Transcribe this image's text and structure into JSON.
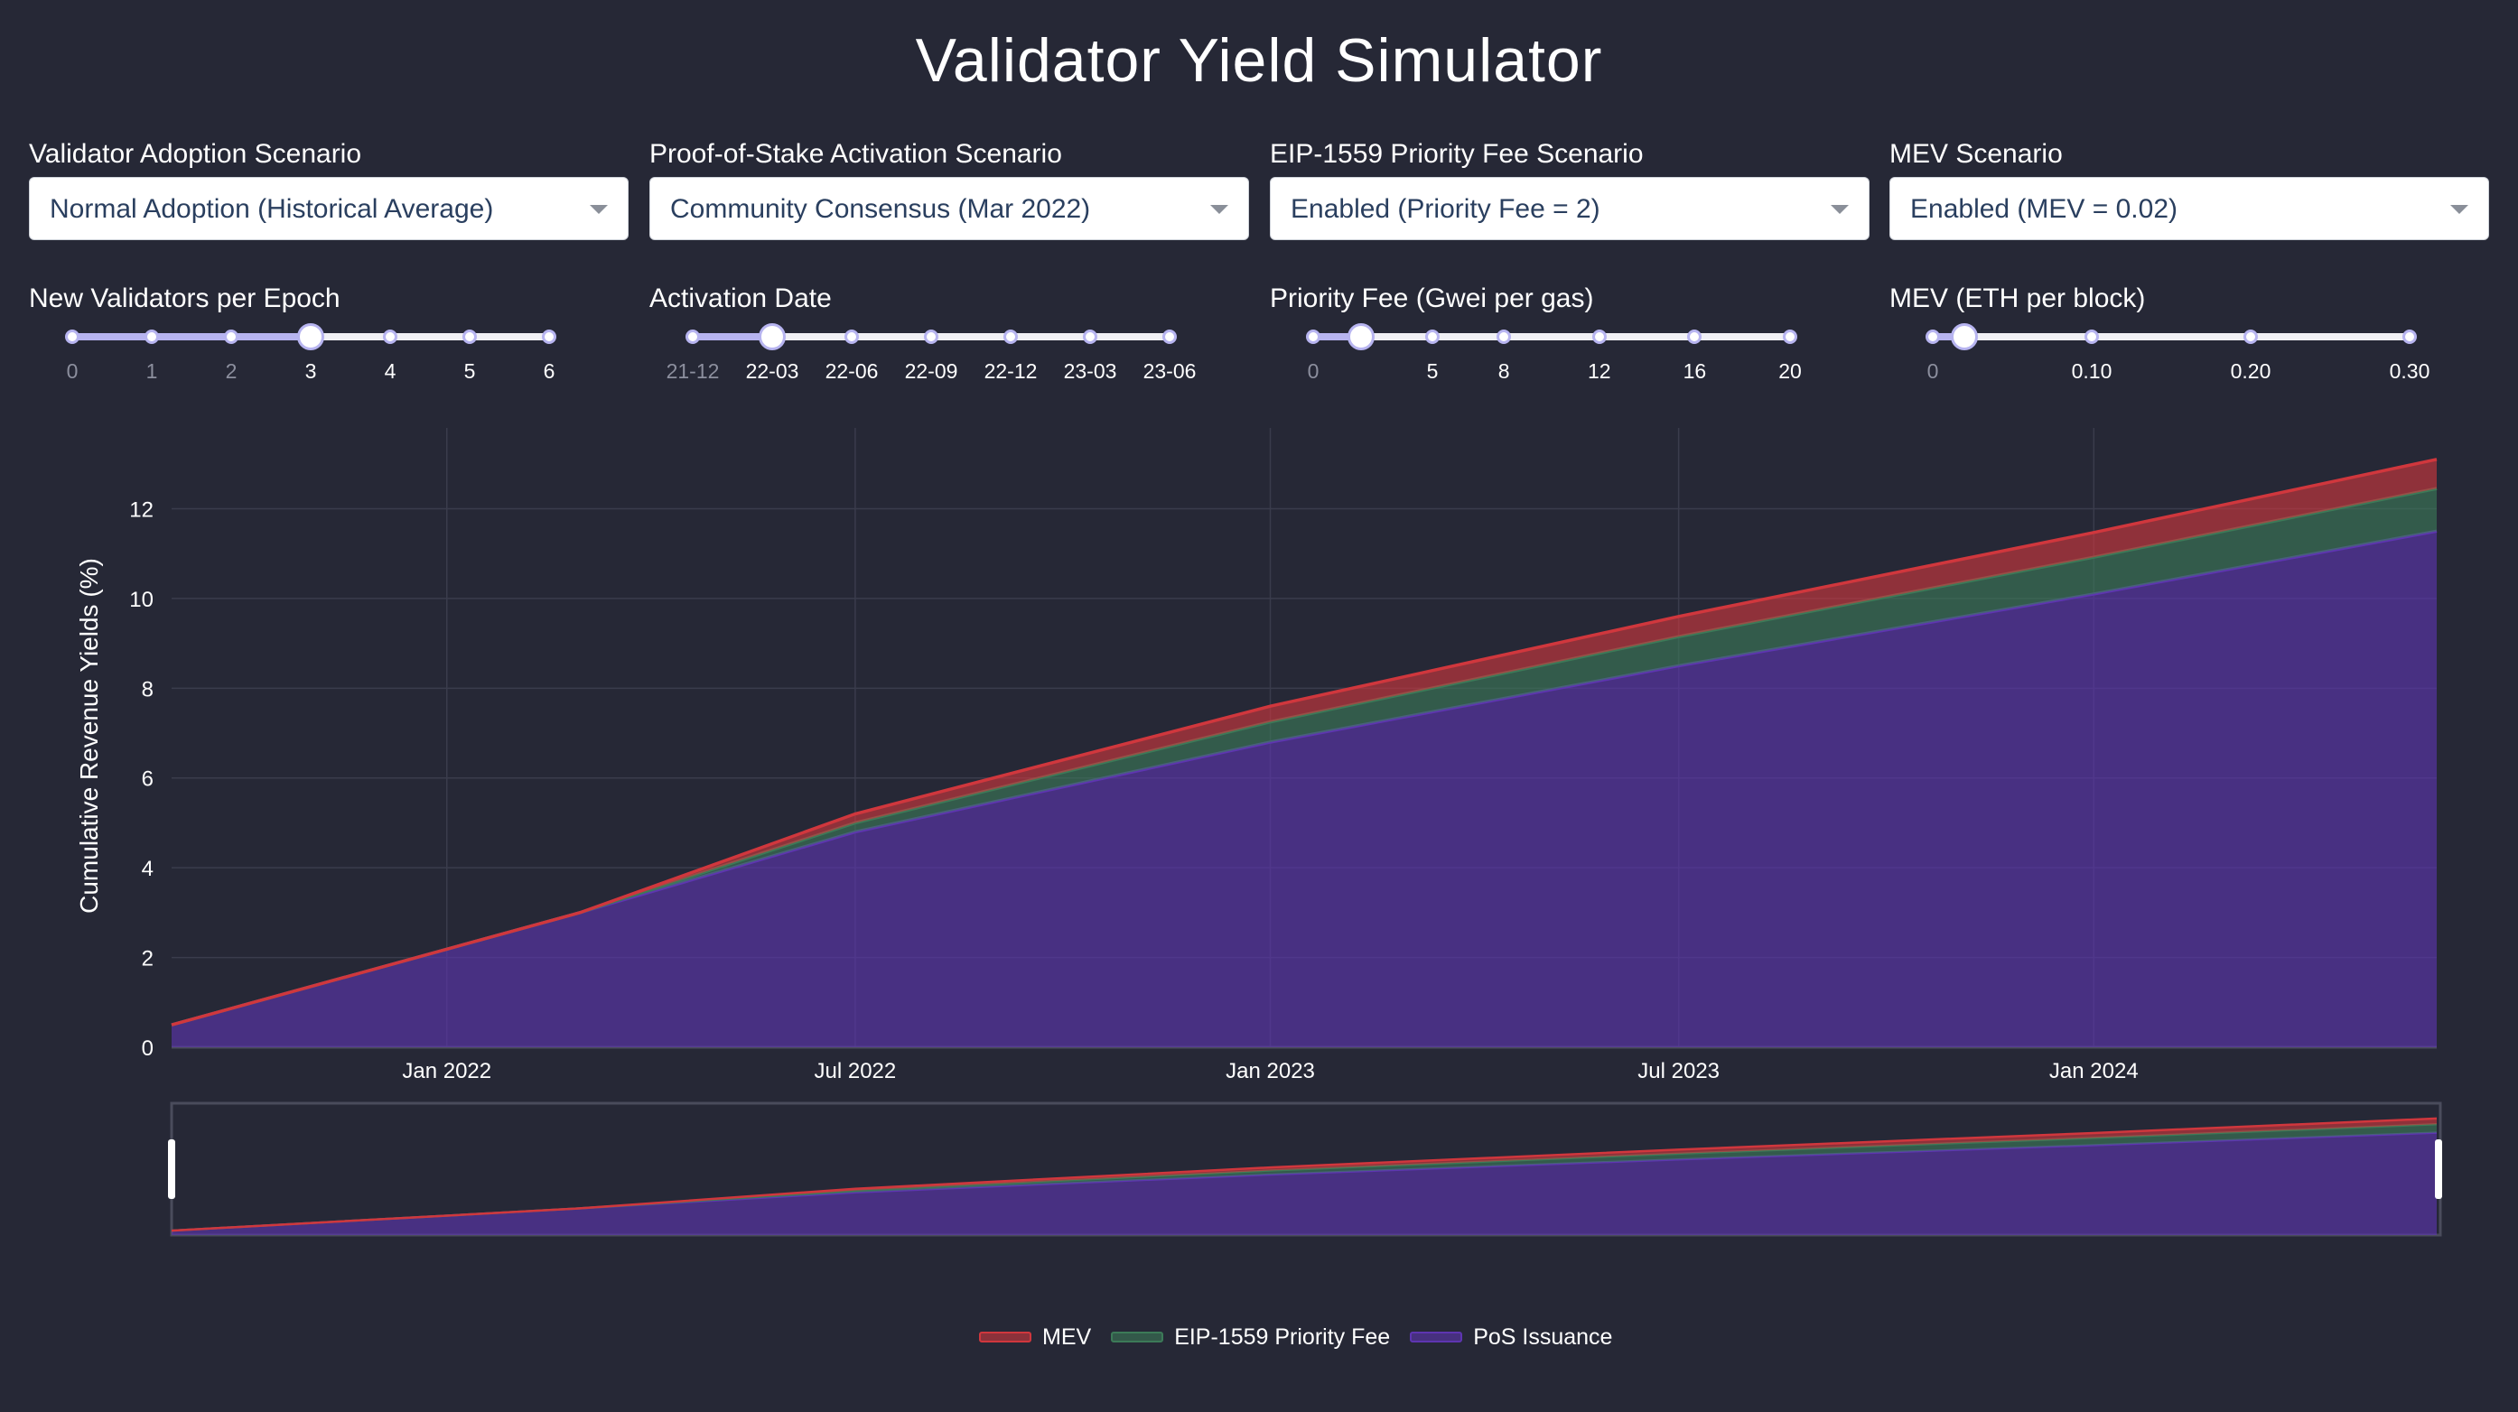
{
  "title": "Validator Yield Simulator",
  "dropdowns": [
    {
      "label": "Validator Adoption Scenario",
      "value": "Normal Adoption (Historical Average)"
    },
    {
      "label": "Proof-of-Stake Activation Scenario",
      "value": "Community Consensus (Mar 2022)"
    },
    {
      "label": "EIP-1559 Priority Fee Scenario",
      "value": "Enabled (Priority Fee = 2)"
    },
    {
      "label": "MEV Scenario",
      "value": "Enabled (MEV = 0.02)"
    }
  ],
  "sliders": [
    {
      "label": "New Validators per Epoch",
      "marks": [
        "0",
        "1",
        "2",
        "3",
        "4",
        "5",
        "6"
      ],
      "min": 0,
      "max": 6,
      "value": 3
    },
    {
      "label": "Activation Date",
      "marks": [
        "21-12",
        "22-03",
        "22-06",
        "22-09",
        "22-12",
        "23-03",
        "23-06"
      ],
      "min": 0,
      "max": 6,
      "value": 1
    },
    {
      "label": "Priority Fee (Gwei per gas)",
      "marks": [
        "0",
        "5",
        "8",
        "12",
        "16",
        "20"
      ],
      "mark_values": [
        0,
        5,
        8,
        12,
        16,
        20
      ],
      "min": 0,
      "max": 20,
      "value": 2
    },
    {
      "label": "MEV (ETH per block)",
      "marks": [
        "0",
        "0.10",
        "0.20",
        "0.30"
      ],
      "mark_values": [
        0,
        0.1,
        0.2,
        0.3
      ],
      "min": 0,
      "max": 0.3,
      "value": 0.02
    }
  ],
  "colors": {
    "mev": "#d0373d",
    "priority_fee": "#3c7a58",
    "pos": "#5e35b1",
    "background": "#262836",
    "grid": "#3a3c4c"
  },
  "chart_data": {
    "type": "area",
    "stacked": true,
    "ylabel": "Cumulative Revenue Yields (%)",
    "xlabel": "",
    "x_ticks": [
      "Jan 2022",
      "Jul 2022",
      "Jan 2023",
      "Jul 2023",
      "Jan 2024"
    ],
    "x_tick_dates": [
      "2022-01-01",
      "2022-07-01",
      "2023-01-01",
      "2023-07-01",
      "2024-01-01"
    ],
    "xlim": [
      "2021-09-01",
      "2024-06-01"
    ],
    "y_ticks": [
      0,
      2,
      4,
      6,
      8,
      10,
      12
    ],
    "ylim": [
      0,
      13.8
    ],
    "x": [
      "2021-09-01",
      "2022-03-01",
      "2022-07-01",
      "2023-01-01",
      "2023-07-01",
      "2024-01-01",
      "2024-06-01"
    ],
    "series": [
      {
        "name": "PoS Issuance",
        "values": [
          0.5,
          3.0,
          4.8,
          6.8,
          8.5,
          10.1,
          11.5
        ]
      },
      {
        "name": "EIP-1559 Priority Fee",
        "values": [
          0.0,
          0.0,
          0.2,
          0.45,
          0.65,
          0.82,
          0.95
        ]
      },
      {
        "name": "MEV",
        "values": [
          0.0,
          0.0,
          0.2,
          0.35,
          0.45,
          0.55,
          0.65
        ]
      }
    ],
    "legend_position": "bottom-center",
    "grid": true,
    "range_slider": true
  }
}
